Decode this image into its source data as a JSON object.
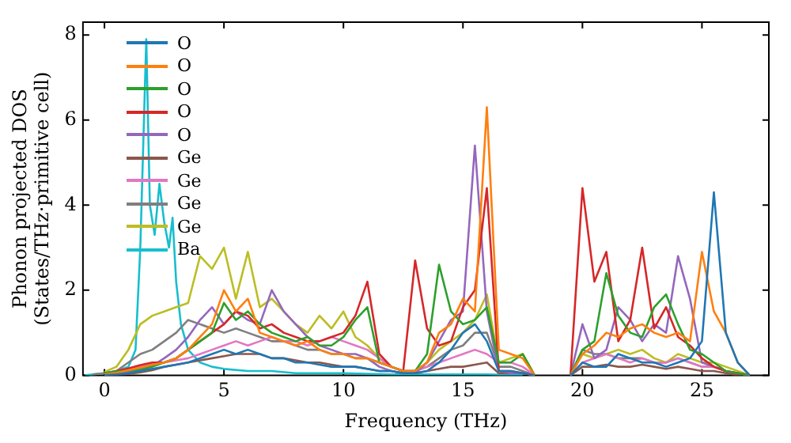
{
  "chart_data": {
    "type": "line",
    "xlabel": "Frequency (THz)",
    "ylabel": "Phonon projected DOS\n(States/THz·primitive cell)",
    "x": [
      -0.5,
      0,
      0.5,
      1,
      1.5,
      2,
      2.5,
      3,
      3.5,
      4,
      4.5,
      5,
      5.5,
      6,
      6.5,
      7,
      7.5,
      8,
      8.5,
      9,
      9.5,
      10,
      10.5,
      11,
      11.5,
      12,
      12.5,
      13,
      13.5,
      14,
      14.5,
      15,
      15.5,
      16,
      16.5,
      17,
      17.5,
      18,
      18.5,
      19,
      19.5,
      20,
      20.5,
      21,
      21.5,
      22,
      22.5,
      23,
      23.5,
      24,
      24.5,
      25,
      25.5,
      26,
      26.5,
      27
    ],
    "xlim": [
      -0.9,
      27.8
    ],
    "xticks": [
      0,
      5,
      10,
      15,
      20,
      25
    ],
    "ylim": [
      0,
      8.3
    ],
    "yticks": [
      0,
      2,
      4,
      6,
      8
    ],
    "grid": false,
    "legend": "top left",
    "marker": "none",
    "line_style": "solid",
    "series": [
      {
        "name": "O",
        "color": "#1f77b4",
        "values": [
          null,
          0,
          0.02,
          0.05,
          0.1,
          0.15,
          0.2,
          0.25,
          0.3,
          0.4,
          0.5,
          0.6,
          0.5,
          0.6,
          0.5,
          0.4,
          0.4,
          0.3,
          0.3,
          0.25,
          0.2,
          0.2,
          0.2,
          0.15,
          0.1,
          0.1,
          0.05,
          0.05,
          0.1,
          0.3,
          0.6,
          1.0,
          1.2,
          0.8,
          0.1,
          0.1,
          0.05,
          0,
          null,
          null,
          0,
          0.3,
          0.2,
          0.2,
          0.5,
          0.4,
          0.3,
          0.3,
          0.2,
          0.3,
          0.4,
          0.8,
          4.3,
          1.0,
          0.3,
          0
        ]
      },
      {
        "name": "O",
        "color": "#ff7f0e",
        "values": [
          null,
          0.02,
          0.06,
          0.12,
          0.18,
          0.25,
          0.3,
          0.4,
          0.6,
          0.9,
          1.2,
          2.0,
          1.5,
          1.8,
          1.0,
          0.9,
          0.8,
          0.7,
          0.8,
          0.6,
          0.5,
          0.5,
          0.4,
          0.4,
          0.3,
          0.2,
          0.1,
          0.1,
          0.3,
          1.0,
          1.2,
          1.8,
          1.5,
          6.3,
          0.6,
          0.5,
          0.4,
          0,
          null,
          null,
          0,
          0.5,
          0.7,
          1.0,
          0.9,
          1.1,
          1.2,
          1.0,
          0.9,
          1.0,
          0.8,
          2.9,
          1.5,
          1.0,
          0.3,
          0
        ]
      },
      {
        "name": "O",
        "color": "#2ca02c",
        "values": [
          null,
          0.05,
          0.09,
          0.11,
          0.13,
          0.2,
          0.3,
          0.4,
          0.6,
          0.8,
          1.0,
          1.7,
          1.3,
          1.5,
          1.2,
          1.0,
          0.9,
          0.8,
          0.9,
          0.7,
          0.7,
          0.9,
          1.3,
          1.6,
          0.3,
          0.2,
          0.1,
          0.1,
          0.5,
          2.6,
          1.5,
          1.2,
          1.3,
          1.6,
          0.3,
          0.3,
          0.5,
          0,
          null,
          null,
          0,
          0.6,
          0.8,
          2.4,
          1.4,
          1.0,
          0.9,
          1.6,
          1.9,
          1.2,
          0.6,
          0.5,
          0.3,
          0.1,
          0.05,
          0
        ]
      },
      {
        "name": "O",
        "color": "#d62728",
        "values": [
          null,
          0.04,
          0.1,
          0.16,
          0.24,
          0.3,
          0.3,
          0.4,
          0.6,
          0.8,
          1.0,
          1.2,
          1.5,
          1.4,
          1.1,
          1.2,
          1.0,
          0.9,
          0.8,
          0.8,
          0.9,
          1.0,
          1.4,
          2.2,
          0.5,
          0.2,
          0.1,
          2.7,
          1.1,
          0.7,
          0.8,
          1.6,
          2.0,
          4.4,
          0.1,
          0.1,
          0.05,
          0,
          null,
          null,
          0,
          4.4,
          2.2,
          2.9,
          0.8,
          1.3,
          3.0,
          1.1,
          1.6,
          0.9,
          0.7,
          0.4,
          0.2,
          0.1,
          0.05,
          0
        ]
      },
      {
        "name": "O",
        "color": "#9467bd",
        "values": [
          null,
          0.01,
          0.04,
          0.08,
          0.14,
          0.22,
          0.4,
          0.6,
          0.9,
          1.3,
          1.6,
          1.2,
          1.5,
          1.3,
          1.2,
          2.0,
          1.5,
          1.2,
          0.9,
          0.7,
          0.6,
          0.5,
          0.5,
          0.4,
          0.2,
          0.1,
          0.05,
          0.05,
          0.3,
          0.8,
          1.3,
          1.5,
          5.4,
          1.5,
          0.1,
          0.05,
          0.05,
          0,
          null,
          null,
          0,
          1.2,
          0.4,
          0.6,
          1.6,
          1.3,
          0.8,
          1.2,
          1.0,
          2.8,
          1.8,
          0.3,
          0.2,
          0.1,
          0.05,
          0
        ]
      },
      {
        "name": "Ge",
        "color": "#8c564b",
        "values": [
          null,
          0,
          0.01,
          0.03,
          0.07,
          0.12,
          0.2,
          0.25,
          0.3,
          0.35,
          0.4,
          0.45,
          0.5,
          0.5,
          0.5,
          0.4,
          0.4,
          0.35,
          0.3,
          0.3,
          0.25,
          0.2,
          0.2,
          0.15,
          0.1,
          0.1,
          0.05,
          0.05,
          0.1,
          0.15,
          0.2,
          0.2,
          0.25,
          0.3,
          0.05,
          0.05,
          0.05,
          0,
          null,
          null,
          0,
          0.2,
          0.2,
          0.25,
          0.2,
          0.2,
          0.25,
          0.2,
          0.15,
          0.2,
          0.15,
          0.1,
          0.1,
          0.05,
          0,
          0
        ]
      },
      {
        "name": "Ge",
        "color": "#e377c2",
        "values": [
          null,
          0.03,
          0.07,
          0.14,
          0.2,
          0.26,
          0.3,
          0.35,
          0.4,
          0.5,
          0.6,
          0.7,
          0.8,
          0.7,
          0.8,
          0.9,
          0.8,
          0.8,
          0.7,
          0.8,
          0.9,
          0.8,
          0.7,
          0.6,
          0.4,
          0.2,
          0.1,
          0.1,
          0.2,
          0.3,
          0.4,
          0.5,
          0.6,
          0.5,
          0.3,
          0.3,
          0.2,
          0,
          null,
          null,
          0,
          0.3,
          0.4,
          0.5,
          0.4,
          0.3,
          0.4,
          0.3,
          0.3,
          0.4,
          0.3,
          0.2,
          0.2,
          0.1,
          0.05,
          0
        ]
      },
      {
        "name": "Ge",
        "color": "#7f7f7f",
        "values": [
          0.02,
          0.05,
          0.1,
          0.3,
          0.5,
          0.6,
          0.8,
          1.0,
          1.3,
          1.2,
          1.1,
          1.0,
          1.1,
          1.0,
          0.9,
          0.8,
          0.8,
          0.7,
          0.6,
          0.6,
          0.5,
          0.5,
          0.4,
          0.4,
          0.3,
          0.2,
          0.1,
          0.1,
          0.2,
          0.4,
          0.6,
          0.7,
          1.0,
          1.0,
          0.2,
          0.2,
          0.1,
          0,
          null,
          null,
          0,
          0.6,
          0.5,
          0.5,
          0.4,
          0.4,
          0.4,
          0.3,
          0.3,
          0.4,
          0.3,
          0.2,
          0.2,
          0.1,
          0.05,
          0
        ]
      },
      {
        "name": "Ge",
        "color": "#bcbd22",
        "values": [
          null,
          0.08,
          0.2,
          0.6,
          1.2,
          1.4,
          1.5,
          1.6,
          1.7,
          2.8,
          2.5,
          3.0,
          1.8,
          2.9,
          1.6,
          1.8,
          1.5,
          1.2,
          1.0,
          1.4,
          1.1,
          1.5,
          0.9,
          0.7,
          0.4,
          0.2,
          0.1,
          0.1,
          0.3,
          0.6,
          0.8,
          1.0,
          1.3,
          1.9,
          0.3,
          0.4,
          0.5,
          0,
          null,
          null,
          0,
          0.5,
          0.4,
          0.5,
          0.6,
          0.5,
          0.6,
          0.4,
          0.3,
          0.5,
          0.4,
          0.3,
          0.3,
          0.2,
          0.1,
          0
        ]
      },
      {
        "name": "Ba",
        "color": "#17becf",
        "x": [
          -0.8,
          0,
          0.5,
          1,
          1.3,
          1.5,
          1.75,
          1.9,
          2.1,
          2.3,
          2.5,
          2.7,
          2.85,
          3.0,
          3.2,
          3.5,
          4,
          4.5,
          5,
          6,
          7,
          8,
          10,
          12,
          15,
          16,
          17.5
        ],
        "values": [
          0,
          0.05,
          0.1,
          0.2,
          0.6,
          3.0,
          7.9,
          4.0,
          3.3,
          4.5,
          3.6,
          3.0,
          3.7,
          2.2,
          1.2,
          0.6,
          0.3,
          0.2,
          0.15,
          0.1,
          0.1,
          0.05,
          0.05,
          0.02,
          0.02,
          0.02,
          0
        ]
      }
    ]
  }
}
